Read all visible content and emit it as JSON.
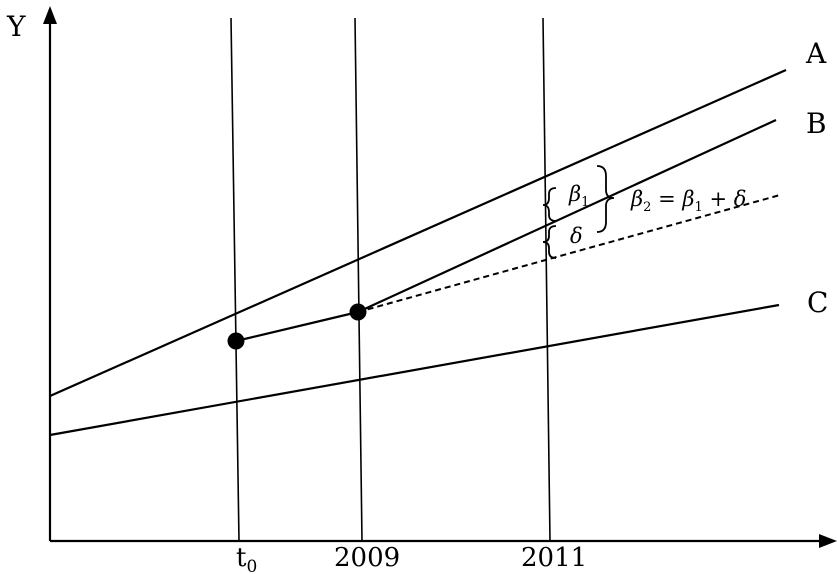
{
  "axes": {
    "y_label": "Y",
    "x_ticks": [
      "t",
      "2009",
      "2011"
    ],
    "t_subscript": "0"
  },
  "lines": {
    "a_label": "A",
    "b_label": "B",
    "c_label": "C"
  },
  "annotations": {
    "beta1_symbol": "β",
    "beta1_sub": "1",
    "delta_symbol": "δ",
    "beta2_symbol": "β",
    "beta2_sub": "2",
    "equals": " = ",
    "beta1b_symbol": "β",
    "beta1b_sub": "1",
    "plus": " + ",
    "delta2_symbol": "δ"
  }
}
